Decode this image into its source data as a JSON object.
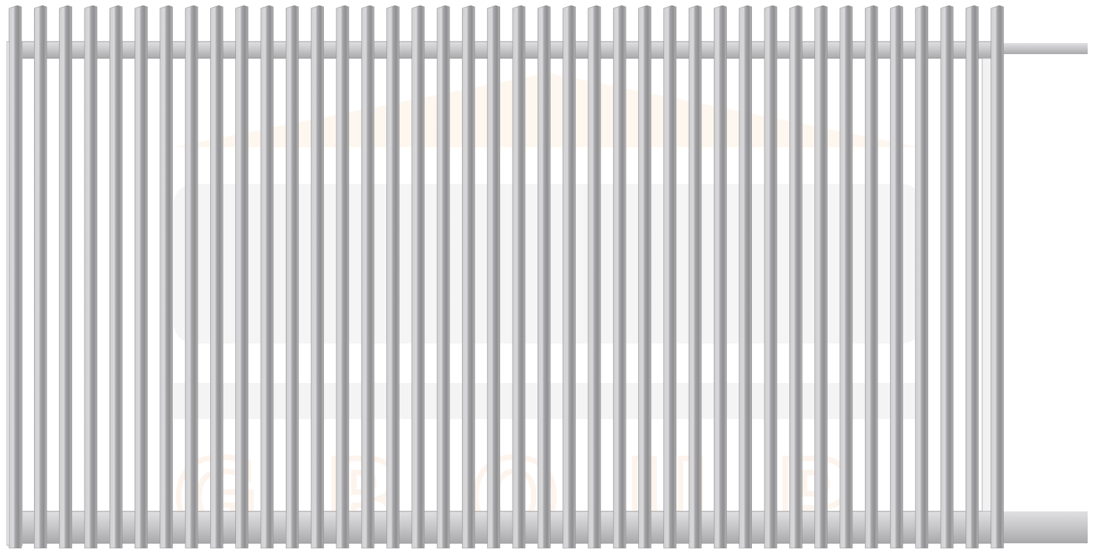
{
  "watermark": {
    "text": "GROUP"
  }
}
